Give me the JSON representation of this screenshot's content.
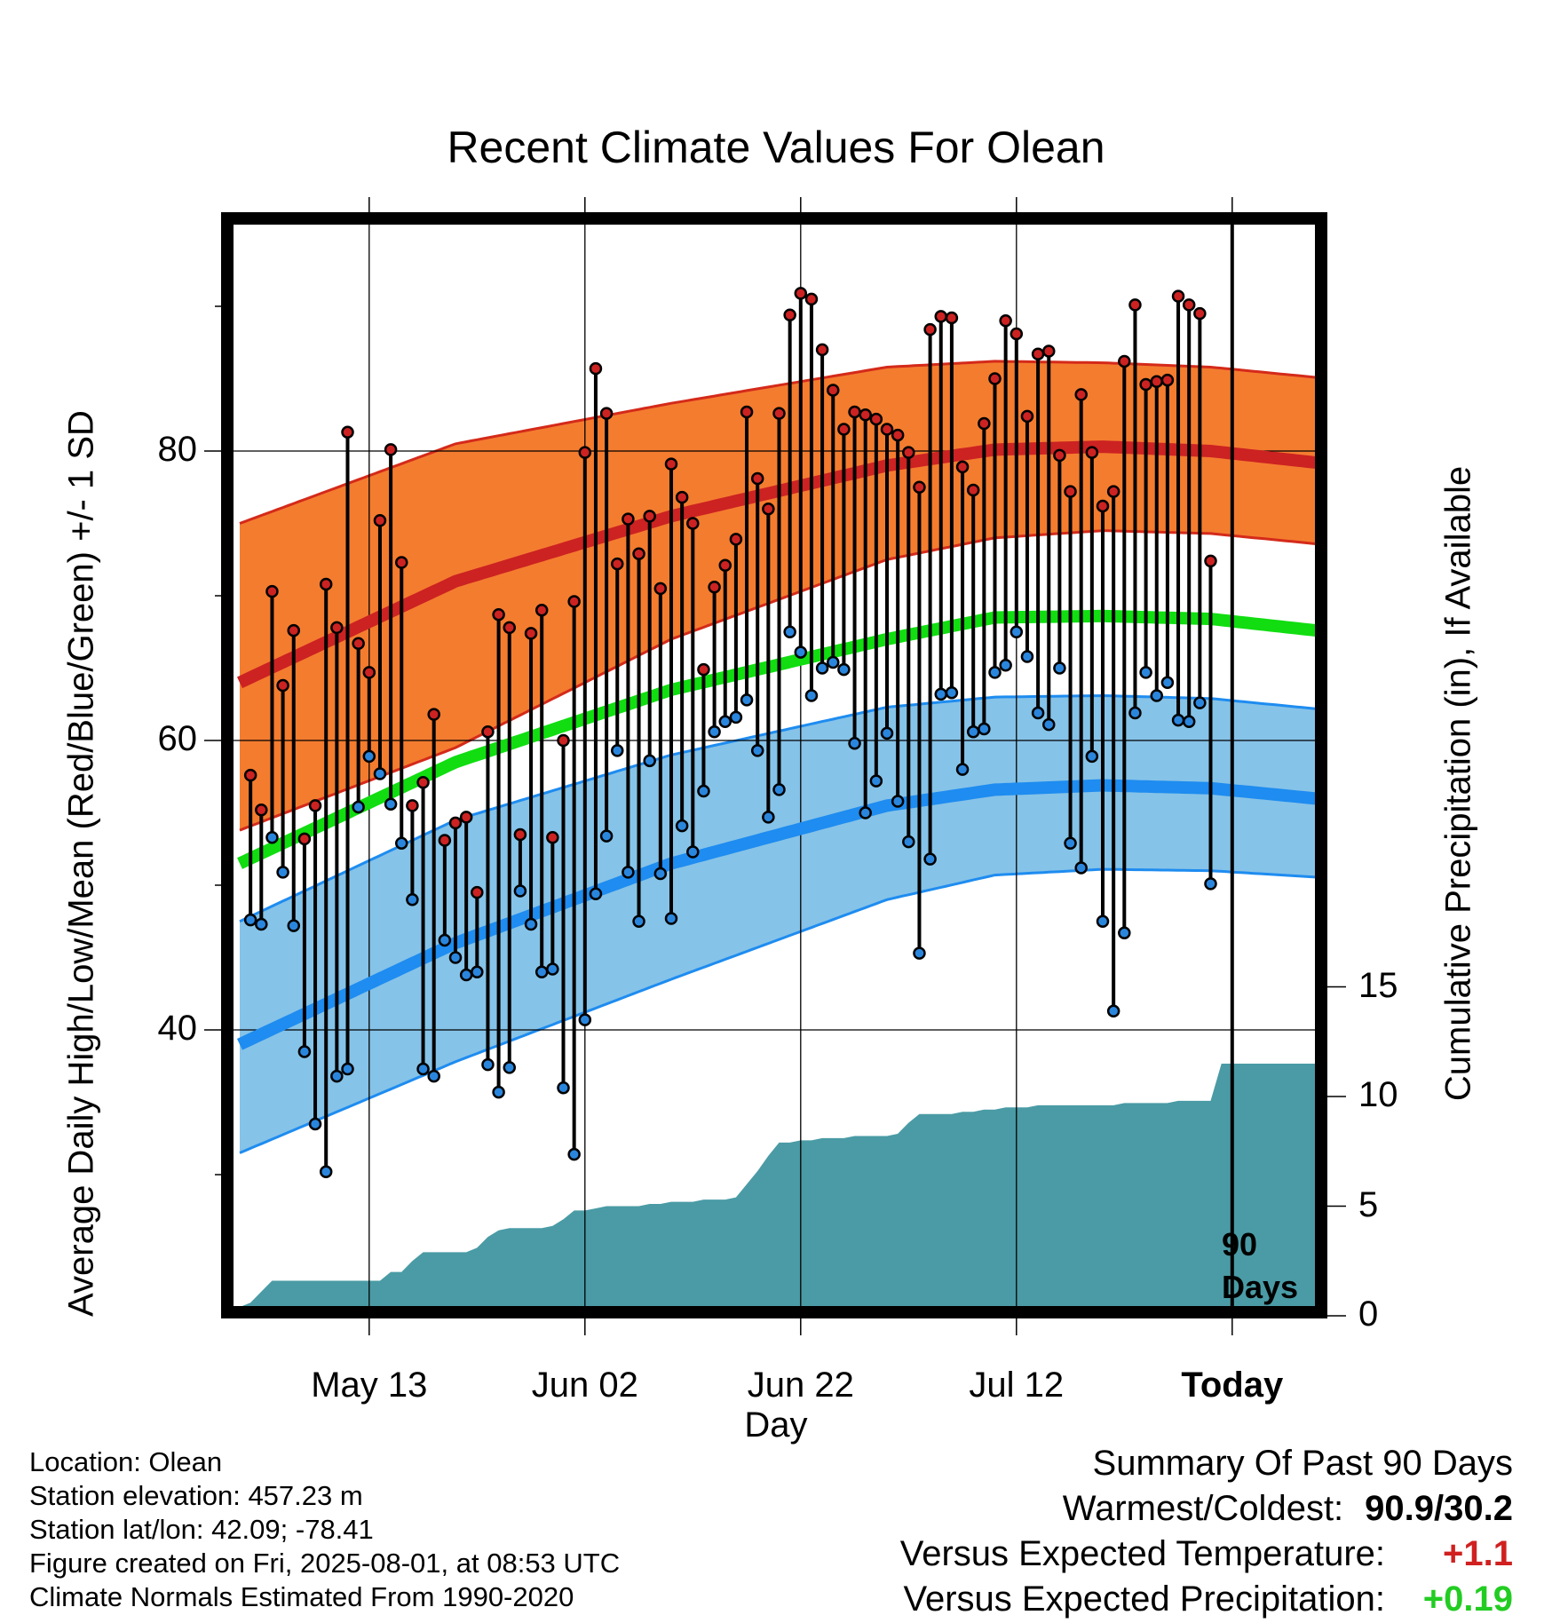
{
  "chart_data": {
    "type": "line",
    "title": "Recent Climate Values For Olean",
    "xlabel": "Day",
    "ylabel": "Average Daily High/Low/Mean (Red/Blue/Green) +/- 1 SD",
    "y2label": "Cumulative Precipitation (in), If Available",
    "x_tick_labels": [
      "May 13",
      "Jun 02",
      "Jun 22",
      "Jul 12",
      "Today"
    ],
    "x_tick_days": [
      12,
      32,
      52,
      72,
      92
    ],
    "x_range_days": [
      0,
      101
    ],
    "ylim": [
      22,
      97
    ],
    "y_ticks": [
      40,
      60,
      80
    ],
    "y2lim": [
      0,
      23
    ],
    "y2_ticks": [
      0,
      5,
      10,
      15
    ],
    "annotation": "90 Days",
    "grid": true,
    "normal_high": {
      "day": [
        0,
        20,
        40,
        60,
        70,
        80,
        90,
        101
      ],
      "value": [
        64.0,
        71.0,
        75.5,
        79.0,
        80.1,
        80.3,
        80.0,
        79.1
      ]
    },
    "normal_high_upper": {
      "day": [
        0,
        20,
        40,
        60,
        70,
        80,
        90,
        101
      ],
      "value": [
        75.0,
        80.5,
        83.3,
        85.8,
        86.2,
        86.1,
        85.8,
        85.0
      ]
    },
    "normal_high_lower": {
      "day": [
        0,
        20,
        40,
        60,
        70,
        80,
        90,
        101
      ],
      "value": [
        53.8,
        59.5,
        67.0,
        72.5,
        74.0,
        74.5,
        74.3,
        73.5
      ]
    },
    "normal_mean": {
      "day": [
        0,
        20,
        40,
        60,
        70,
        80,
        90,
        101
      ],
      "value": [
        51.5,
        58.5,
        63.5,
        67.0,
        68.5,
        68.6,
        68.4,
        67.5
      ]
    },
    "normal_low": {
      "day": [
        0,
        20,
        40,
        60,
        70,
        80,
        90,
        101
      ],
      "value": [
        39.0,
        46.0,
        51.5,
        55.5,
        56.6,
        56.9,
        56.7,
        55.9
      ]
    },
    "normal_low_upper": {
      "day": [
        0,
        20,
        40,
        60,
        70,
        80,
        90,
        101
      ],
      "value": [
        47.5,
        54.5,
        59.0,
        62.3,
        63.0,
        63.1,
        62.9,
        62.1
      ]
    },
    "normal_low_lower": {
      "day": [
        0,
        20,
        40,
        60,
        70,
        80,
        90,
        101
      ],
      "value": [
        31.5,
        37.8,
        43.5,
        49.0,
        50.7,
        51.1,
        51.0,
        50.5
      ]
    },
    "daily_high": [
      57.6,
      55.2,
      70.3,
      63.8,
      67.6,
      53.2,
      55.5,
      70.8,
      67.8,
      81.3,
      66.7,
      64.7,
      75.2,
      80.1,
      72.3,
      55.5,
      57.1,
      61.8,
      53.1,
      54.3,
      54.7,
      49.5,
      60.6,
      68.7,
      67.8,
      53.5,
      67.4,
      69.0,
      53.3,
      60.0,
      69.6,
      79.9,
      85.7,
      82.6,
      72.2,
      75.3,
      72.9,
      75.5,
      70.5,
      79.1,
      76.8,
      75.0,
      64.9,
      70.6,
      72.1,
      73.9,
      82.7,
      78.1,
      76.0,
      82.6,
      89.4,
      90.9,
      90.5,
      87.0,
      84.2,
      81.5,
      82.7,
      82.5,
      82.2,
      81.5,
      81.1,
      79.9,
      77.5,
      88.4,
      89.3,
      89.2,
      78.9,
      77.3,
      81.9,
      85.0,
      89.0,
      88.1,
      82.4,
      86.7,
      86.9,
      79.7,
      77.2,
      83.9,
      79.9,
      76.2,
      77.2,
      86.2,
      90.1,
      84.6,
      84.8,
      84.9,
      90.7,
      90.1,
      89.5,
      72.4
    ],
    "daily_low": [
      47.6,
      47.3,
      53.3,
      50.9,
      47.2,
      38.5,
      33.5,
      30.2,
      36.8,
      37.3,
      55.4,
      58.9,
      57.7,
      55.6,
      52.9,
      49.0,
      37.3,
      36.8,
      46.2,
      45.0,
      43.8,
      44.0,
      37.6,
      35.7,
      37.4,
      49.6,
      47.3,
      44.0,
      44.2,
      36.0,
      31.4,
      40.7,
      49.4,
      53.4,
      59.3,
      50.9,
      47.5,
      58.6,
      50.8,
      47.7,
      54.1,
      52.3,
      56.5,
      60.6,
      61.3,
      61.6,
      62.8,
      59.3,
      54.7,
      56.6,
      67.5,
      66.1,
      63.1,
      65.0,
      65.4,
      64.9,
      59.8,
      55.0,
      57.2,
      60.5,
      55.8,
      53.0,
      45.3,
      51.8,
      63.2,
      63.3,
      58.0,
      60.6,
      60.8,
      64.7,
      65.2,
      67.5,
      65.8,
      61.9,
      61.1,
      65.0,
      52.9,
      51.2,
      58.9,
      47.5,
      41.3,
      46.7,
      61.9,
      64.7,
      63.1,
      64.0,
      61.4,
      61.3,
      62.6,
      50.1
    ],
    "cumulative_precip_in": {
      "day": [
        0,
        1,
        2,
        3,
        4,
        5,
        6,
        7,
        8,
        9,
        10,
        11,
        12,
        13,
        14,
        15,
        16,
        17,
        18,
        19,
        20,
        21,
        22,
        23,
        24,
        25,
        26,
        27,
        28,
        29,
        30,
        31,
        32,
        33,
        34,
        35,
        36,
        37,
        38,
        39,
        40,
        41,
        42,
        43,
        44,
        45,
        46,
        47,
        48,
        49,
        50,
        51,
        52,
        53,
        54,
        55,
        56,
        57,
        58,
        59,
        60,
        61,
        62,
        63,
        64,
        65,
        66,
        67,
        68,
        69,
        70,
        71,
        72,
        73,
        74,
        75,
        76,
        77,
        78,
        79,
        80,
        81,
        82,
        83,
        84,
        85,
        86,
        87,
        88,
        89,
        90,
        91,
        92,
        93,
        94,
        95,
        96,
        97,
        98,
        99,
        100,
        101
      ],
      "value": [
        0.4,
        0.6,
        1.1,
        1.6,
        1.6,
        1.6,
        1.6,
        1.6,
        1.6,
        1.6,
        1.6,
        1.6,
        1.6,
        1.6,
        2.0,
        2.0,
        2.5,
        2.9,
        2.9,
        2.9,
        2.9,
        2.9,
        3.1,
        3.6,
        3.9,
        4.0,
        4.0,
        4.0,
        4.0,
        4.1,
        4.4,
        4.8,
        4.8,
        4.9,
        5.0,
        5.0,
        5.0,
        5.0,
        5.1,
        5.1,
        5.2,
        5.2,
        5.2,
        5.3,
        5.3,
        5.3,
        5.4,
        6.0,
        6.6,
        7.3,
        7.9,
        7.9,
        8.0,
        8.0,
        8.1,
        8.1,
        8.1,
        8.2,
        8.2,
        8.2,
        8.2,
        8.3,
        8.8,
        9.2,
        9.2,
        9.2,
        9.2,
        9.3,
        9.3,
        9.4,
        9.4,
        9.5,
        9.5,
        9.5,
        9.6,
        9.6,
        9.6,
        9.6,
        9.6,
        9.6,
        9.6,
        9.6,
        9.7,
        9.7,
        9.7,
        9.7,
        9.7,
        9.8,
        9.8,
        9.8,
        9.8,
        9.9,
        9.9,
        10.0,
        10.1,
        10.1,
        10.1,
        10.2,
        10.2,
        10.3,
        10.4,
        10.4
      ],
      "note_final_jump_to": 11.5
    }
  },
  "colors": {
    "high_band": "#f47c2f",
    "high_band_edge": "#d42a1a",
    "high_line": "#cc2222",
    "mean_line": "#11dd11",
    "low_band": "#86c3e8",
    "low_band_edge": "#1e8cf0",
    "low_line": "#1e8cf0",
    "precip": "#4a9ba5",
    "high_dot": "#cc2222",
    "low_dot": "#2a86dd",
    "warm_value": "#d02020",
    "precip_value": "#22cc22"
  },
  "info": {
    "location": "Location: Olean",
    "elevation": "Station elevation: 457.23 m",
    "latlon": "Station lat/lon: 42.09; -78.41",
    "created": "Figure created on Fri, 2025-08-01, at 08:53 UTC",
    "normals": "Climate Normals Estimated From 1990-2020"
  },
  "summary": {
    "heading": "Summary Of Past 90 Days",
    "warm_cold_label": "Warmest/Coldest:",
    "warm_cold_value": "90.9/30.2",
    "temp_label": "Versus Expected Temperature:",
    "temp_value": "+1.1",
    "precip_label": "Versus Expected Precipitation:",
    "precip_value": "+0.19"
  },
  "days_label_line1": "90",
  "days_label_line2": "Days"
}
